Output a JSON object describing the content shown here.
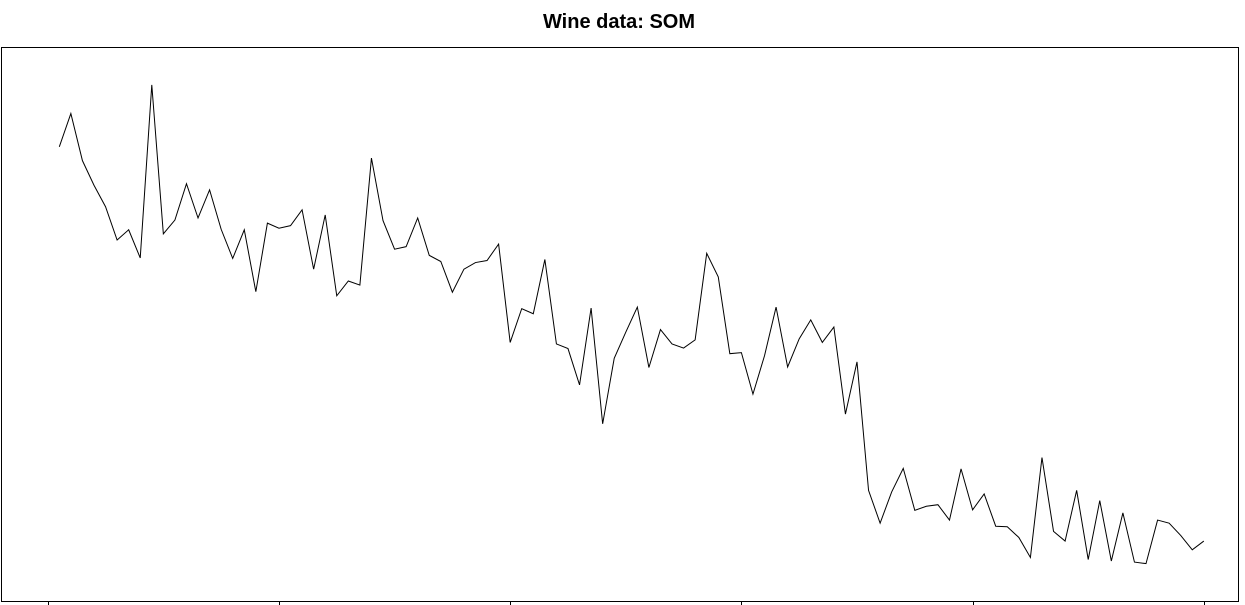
{
  "chart_data": {
    "type": "line",
    "title": "Wine data: SOM",
    "xlabel": "",
    "ylabel": "",
    "grid": false,
    "x_ticks": [
      0,
      20,
      40,
      60,
      80,
      100
    ],
    "xlim": [
      -4,
      103
    ],
    "ylim": [
      0,
      100
    ],
    "series": [
      {
        "values": [
          84.8,
          91.3,
          82.1,
          77.3,
          73.1,
          66.6,
          68.6,
          63.1,
          96.9,
          67.8,
          70.5,
          77.6,
          70.9,
          76.4,
          68.7,
          63.0,
          68.6,
          56.5,
          69.9,
          68.9,
          69.4,
          72.5,
          60.9,
          71.5,
          55.7,
          58.6,
          57.8,
          82.6,
          70.4,
          64.8,
          65.3,
          70.9,
          63.6,
          62.4,
          56.4,
          60.9,
          62.2,
          62.6,
          65.8,
          46.6,
          53.2,
          52.2,
          62.8,
          46.3,
          45.4,
          38.3,
          53.3,
          30.7,
          43.5,
          48.6,
          53.5,
          41.7,
          49.1,
          46.3,
          45.5,
          47.1,
          64.0,
          59.4,
          44.4,
          44.6,
          36.5,
          44.0,
          53.5,
          41.8,
          47.3,
          51.0,
          46.6,
          49.6,
          32.6,
          42.8,
          17.7,
          11.3,
          17.4,
          22.0,
          13.8,
          14.6,
          14.9,
          11.9,
          21.9,
          13.9,
          17.0,
          10.7,
          10.6,
          8.5,
          4.6,
          24.1,
          9.7,
          7.8,
          17.7,
          4.2,
          15.7,
          3.9,
          13.3,
          3.7,
          3.4,
          11.9,
          11.3,
          8.9,
          6.1,
          7.8
        ]
      }
    ]
  }
}
